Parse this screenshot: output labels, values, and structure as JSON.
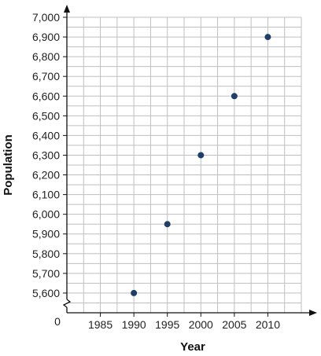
{
  "chart_data": {
    "type": "scatter",
    "title": "",
    "xlabel": "Year",
    "ylabel": "Population",
    "origin_label": "0",
    "x_ticks": [
      1985,
      1990,
      1995,
      2000,
      2005,
      2010
    ],
    "y_ticks": [
      5600,
      5700,
      5800,
      5900,
      6000,
      6100,
      6200,
      6300,
      6400,
      6500,
      6600,
      6700,
      6800,
      6900,
      7000
    ],
    "y_tick_labels": [
      "5,600",
      "5,700",
      "5,800",
      "5,900",
      "6,000",
      "6,100",
      "6,200",
      "6,300",
      "6,400",
      "6,500",
      "6,600",
      "6,700",
      "6,800",
      "6,900",
      "7,000"
    ],
    "x_tick_labels": [
      "1985",
      "1990",
      "1995",
      "2000",
      "2005",
      "2010"
    ],
    "xlim": [
      1980,
      2015
    ],
    "ylim": [
      5500,
      7000
    ],
    "axis_break": true,
    "grid": true,
    "points": [
      {
        "x": 1990,
        "y": 5600
      },
      {
        "x": 1995,
        "y": 5950
      },
      {
        "x": 2000,
        "y": 6300
      },
      {
        "x": 2005,
        "y": 6600
      },
      {
        "x": 2010,
        "y": 6900
      }
    ],
    "colors": {
      "point": "#1f3f66",
      "grid": "#bfbfbf",
      "axis": "#111111"
    }
  }
}
